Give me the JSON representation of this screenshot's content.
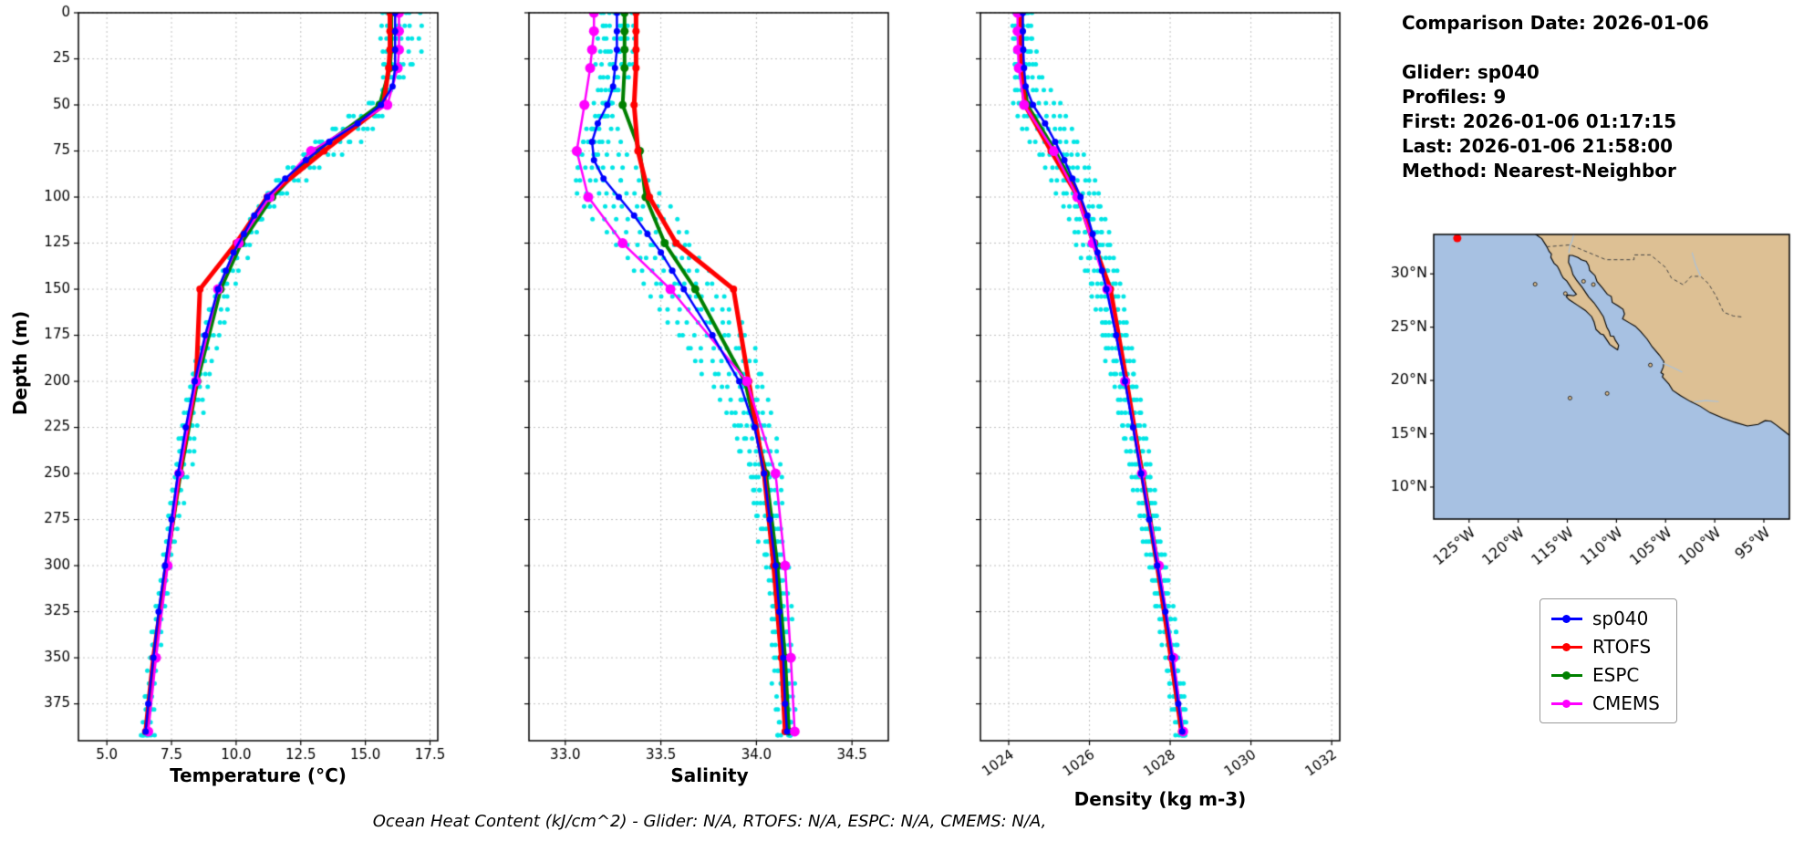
{
  "info": {
    "comparison_date": "Comparison Date: 2026-01-06",
    "glider": "Glider: sp040",
    "profiles": "Profiles: 9",
    "first": "First: 2026-01-06 01:17:15",
    "last": "Last: 2026-01-06 21:58:00",
    "method": "Method: Nearest-Neighbor"
  },
  "caption": {
    "text": "Ocean Heat Content (kJ/cm^2) - Glider: N/A,  RTOFS: N/A,  ESPC: N/A,  CMEMS: N/A,"
  },
  "legend": {
    "items": [
      {
        "label": "sp040",
        "color": "#0000ff"
      },
      {
        "label": "RTOFS",
        "color": "#ff0000"
      },
      {
        "label": "ESPC",
        "color": "#008000"
      },
      {
        "label": "CMEMS",
        "color": "#ff00ff"
      }
    ]
  },
  "chart_data": {
    "type": "line",
    "ylabel": "Depth (m)",
    "ylim": [
      0,
      395
    ],
    "depth_ticks": [
      0,
      25,
      50,
      75,
      100,
      125,
      150,
      175,
      200,
      225,
      250,
      275,
      300,
      325,
      350,
      375
    ],
    "glider_depth_levels": [
      0,
      10,
      20,
      30,
      40,
      50,
      60,
      70,
      80,
      90,
      100,
      110,
      120,
      130,
      140,
      150,
      175,
      200,
      225,
      250,
      275,
      300,
      325,
      350,
      375,
      390
    ],
    "model_depth_levels": [
      0,
      10,
      20,
      30,
      50,
      75,
      100,
      125,
      150,
      200,
      250,
      300,
      350,
      390
    ],
    "series_style": [
      {
        "name": "sp040",
        "color": "#0000ff",
        "lw": 2.5,
        "r": 3.5,
        "levels": "glider"
      },
      {
        "name": "RTOFS",
        "color": "#ff0000",
        "lw": 5.0,
        "r": 4.0,
        "levels": "model"
      },
      {
        "name": "ESPC",
        "color": "#008000",
        "lw": 4.0,
        "r": 4.5,
        "levels": "model"
      },
      {
        "name": "CMEMS",
        "color": "#ff00ff",
        "lw": 2.5,
        "r": 5.5,
        "levels": "model"
      }
    ],
    "scatter": {
      "name": "glider-raw-profiles",
      "color": "#00e5e5",
      "r": 2.5,
      "depth_offsets": [
        -16,
        -12,
        -8,
        -4,
        0,
        4,
        8,
        12,
        16
      ],
      "depth_step": 7,
      "max_depth": 392
    },
    "panels": [
      {
        "id": "temperature",
        "xlabel": "Temperature (°C)",
        "xlim": [
          3.9,
          17.8
        ],
        "xticks": [
          5.0,
          7.5,
          10.0,
          12.5,
          15.0,
          17.5
        ],
        "xtick_labels": [
          "5.0",
          "7.5",
          "10.0",
          "12.5",
          "15.0",
          "17.5"
        ],
        "rotate": 0,
        "series": {
          "sp040": [
            16.15,
            16.15,
            16.15,
            16.15,
            16.05,
            15.6,
            14.7,
            13.6,
            12.7,
            11.9,
            11.2,
            10.7,
            10.3,
            9.9,
            9.6,
            9.3,
            8.8,
            8.4,
            8.05,
            7.75,
            7.5,
            7.25,
            7.0,
            6.8,
            6.6,
            6.5
          ],
          "RTOFS": [
            15.95,
            15.95,
            15.95,
            15.9,
            15.7,
            13.4,
            11.2,
            10.0,
            8.6,
            8.45,
            7.8,
            7.3,
            6.8,
            6.5
          ],
          "ESPC": [
            16.0,
            16.0,
            16.0,
            15.95,
            15.55,
            13.1,
            11.4,
            10.2,
            9.4,
            8.5,
            7.85,
            7.3,
            6.85,
            6.55
          ],
          "CMEMS": [
            16.3,
            16.3,
            16.3,
            16.25,
            15.85,
            12.9,
            11.3,
            10.1,
            9.3,
            8.45,
            7.8,
            7.35,
            6.9,
            6.6
          ]
        },
        "scatter_value_offsets": [
          -0.5,
          -0.35,
          -0.2,
          -0.1,
          0,
          0.15,
          0.35,
          0.6,
          1.0
        ],
        "scatter_noise": 0.07
      },
      {
        "id": "salinity",
        "xlabel": "Salinity",
        "xlim": [
          32.81,
          34.69
        ],
        "xticks": [
          33.0,
          33.5,
          34.0,
          34.5
        ],
        "xtick_labels": [
          "33.0",
          "33.5",
          "34.0",
          "34.5"
        ],
        "rotate": 0,
        "series": {
          "sp040": [
            33.27,
            33.27,
            33.27,
            33.26,
            33.25,
            33.22,
            33.17,
            33.14,
            33.15,
            33.2,
            33.28,
            33.36,
            33.43,
            33.5,
            33.56,
            33.62,
            33.77,
            33.91,
            33.99,
            34.04,
            34.07,
            34.1,
            34.12,
            34.14,
            34.15,
            34.16
          ],
          "RTOFS": [
            33.37,
            33.37,
            33.37,
            33.37,
            33.36,
            33.38,
            33.44,
            33.58,
            33.88,
            33.96,
            34.04,
            34.09,
            34.13,
            34.15
          ],
          "ESPC": [
            33.31,
            33.31,
            33.31,
            33.31,
            33.3,
            33.39,
            33.42,
            33.52,
            33.68,
            33.94,
            34.05,
            34.11,
            34.15,
            34.17
          ],
          "CMEMS": [
            33.15,
            33.15,
            33.14,
            33.13,
            33.1,
            33.06,
            33.12,
            33.3,
            33.55,
            33.95,
            34.1,
            34.15,
            34.18,
            34.2
          ]
        },
        "scatter_value_offsets": [
          -0.1,
          -0.07,
          -0.045,
          -0.02,
          0,
          0.02,
          0.04,
          0.07,
          0.1
        ],
        "scatter_noise": 0.012
      },
      {
        "id": "density",
        "xlabel": "Density (kg m-3)",
        "xlim": [
          1023.3,
          1032.2
        ],
        "xticks": [
          1024,
          1026,
          1028,
          1030,
          1032
        ],
        "xtick_labels": [
          "1024",
          "1026",
          "1028",
          "1030",
          "1032"
        ],
        "rotate": 35,
        "series": {
          "sp040": [
            1024.35,
            1024.35,
            1024.36,
            1024.38,
            1024.42,
            1024.6,
            1024.9,
            1025.15,
            1025.38,
            1025.58,
            1025.78,
            1025.95,
            1026.08,
            1026.2,
            1026.31,
            1026.42,
            1026.66,
            1026.88,
            1027.08,
            1027.28,
            1027.48,
            1027.68,
            1027.88,
            1028.05,
            1028.2,
            1028.3
          ],
          "RTOFS": [
            1024.3,
            1024.3,
            1024.3,
            1024.31,
            1024.4,
            1025.05,
            1025.72,
            1026.1,
            1026.52,
            1026.92,
            1027.3,
            1027.68,
            1028.02,
            1028.28
          ],
          "ESPC": [
            1024.32,
            1024.32,
            1024.33,
            1024.34,
            1024.46,
            1025.15,
            1025.75,
            1026.12,
            1026.46,
            1026.9,
            1027.32,
            1027.7,
            1028.05,
            1028.3
          ],
          "CMEMS": [
            1024.22,
            1024.22,
            1024.23,
            1024.25,
            1024.38,
            1025.12,
            1025.7,
            1026.08,
            1026.44,
            1026.88,
            1027.3,
            1027.72,
            1028.08,
            1028.32
          ]
        },
        "scatter_value_offsets": [
          -0.22,
          -0.16,
          -0.1,
          -0.05,
          0,
          0.05,
          0.1,
          0.16,
          0.22
        ],
        "scatter_noise": 0.03
      }
    ]
  },
  "map": {
    "extent": {
      "lon_min": -128.6,
      "lon_max": -92.4,
      "lat_min": 7.0,
      "lat_max": 33.7
    },
    "lon_ticks": {
      "values": [
        -125,
        -120,
        -115,
        -110,
        -105,
        -100,
        -95
      ],
      "labels": [
        "125°W",
        "120°W",
        "115°W",
        "110°W",
        "105°W",
        "100°W",
        "95°W"
      ]
    },
    "lat_ticks": {
      "values": [
        10,
        15,
        20,
        25,
        30
      ],
      "labels": [
        "10°N",
        "15°N",
        "20°N",
        "25°N",
        "30°N"
      ]
    },
    "colors": {
      "ocean": "#a7c1e2",
      "land": "#ddc094",
      "coast": "#000000",
      "border": "#444444",
      "river": "#a9c2dc",
      "marker": "#ff0000"
    },
    "glider_marker": {
      "lon": -126.2,
      "lat": 33.35
    },
    "land": [
      [
        -118.25,
        33.72
      ],
      [
        -117.6,
        33.3
      ],
      [
        -117.12,
        32.6
      ],
      [
        -116.85,
        32.1
      ],
      [
        -116.62,
        31.86
      ],
      [
        -116.68,
        31.55
      ],
      [
        -116.35,
        31.0
      ],
      [
        -116.02,
        30.72
      ],
      [
        -115.78,
        30.3
      ],
      [
        -115.62,
        29.95
      ],
      [
        -115.42,
        29.62
      ],
      [
        -115.05,
        29.32
      ],
      [
        -114.52,
        28.58
      ],
      [
        -114.08,
        28.08
      ],
      [
        -114.35,
        27.95
      ],
      [
        -114.98,
        28.02
      ],
      [
        -115.1,
        27.85
      ],
      [
        -114.82,
        27.58
      ],
      [
        -114.0,
        27.08
      ],
      [
        -113.18,
        26.58
      ],
      [
        -112.52,
        25.98
      ],
      [
        -112.28,
        25.48
      ],
      [
        -112.08,
        24.78
      ],
      [
        -111.62,
        24.38
      ],
      [
        -111.32,
        24.28
      ],
      [
        -110.68,
        23.38
      ],
      [
        -110.0,
        22.94
      ],
      [
        -109.88,
        22.88
      ],
      [
        -109.78,
        23.3
      ],
      [
        -110.12,
        23.78
      ],
      [
        -110.28,
        24.14
      ],
      [
        -110.62,
        24.18
      ],
      [
        -110.74,
        24.58
      ],
      [
        -110.98,
        25.0
      ],
      [
        -111.33,
        25.98
      ],
      [
        -111.83,
        26.68
      ],
      [
        -112.28,
        27.28
      ],
      [
        -112.83,
        27.83
      ],
      [
        -113.48,
        28.73
      ],
      [
        -114.08,
        29.43
      ],
      [
        -114.43,
        29.93
      ],
      [
        -114.63,
        30.58
      ],
      [
        -114.88,
        31.08
      ],
      [
        -114.83,
        31.73
      ],
      [
        -114.48,
        31.73
      ],
      [
        -113.93,
        31.53
      ],
      [
        -113.58,
        31.33
      ],
      [
        -113.08,
        31.18
      ],
      [
        -112.83,
        30.78
      ],
      [
        -112.73,
        30.33
      ],
      [
        -112.18,
        29.83
      ],
      [
        -111.98,
        29.28
      ],
      [
        -111.43,
        28.68
      ],
      [
        -110.93,
        28.08
      ],
      [
        -110.53,
        27.88
      ],
      [
        -110.43,
        27.33
      ],
      [
        -109.88,
        27.03
      ],
      [
        -109.33,
        26.68
      ],
      [
        -109.18,
        26.23
      ],
      [
        -109.38,
        25.78
      ],
      [
        -108.73,
        25.43
      ],
      [
        -108.08,
        25.08
      ],
      [
        -107.53,
        24.58
      ],
      [
        -106.88,
        23.88
      ],
      [
        -106.38,
        23.18
      ],
      [
        -105.63,
        22.38
      ],
      [
        -105.18,
        21.78
      ],
      [
        -105.23,
        21.28
      ],
      [
        -105.48,
        20.73
      ],
      [
        -105.23,
        20.58
      ],
      [
        -105.33,
        20.33
      ],
      [
        -104.68,
        19.68
      ],
      [
        -104.28,
        19.08
      ],
      [
        -103.48,
        18.58
      ],
      [
        -102.48,
        18.03
      ],
      [
        -101.48,
        17.58
      ],
      [
        -100.48,
        16.98
      ],
      [
        -99.18,
        16.48
      ],
      [
        -97.98,
        16.08
      ],
      [
        -96.68,
        15.73
      ],
      [
        -95.58,
        15.88
      ],
      [
        -94.88,
        16.23
      ],
      [
        -94.28,
        16.18
      ],
      [
        -93.68,
        15.78
      ],
      [
        -92.98,
        15.28
      ],
      [
        -92.2,
        14.7
      ],
      [
        -92.2,
        33.72
      ]
    ],
    "border": [
      [
        -117.12,
        32.54
      ],
      [
        -114.72,
        32.72
      ],
      [
        -111.07,
        31.33
      ],
      [
        -108.21,
        31.33
      ],
      [
        -108.21,
        31.78
      ],
      [
        -106.53,
        31.78
      ],
      [
        -105.0,
        30.6
      ],
      [
        -104.4,
        29.6
      ],
      [
        -103.2,
        28.97
      ],
      [
        -102.4,
        29.77
      ],
      [
        -101.45,
        29.77
      ],
      [
        -100.65,
        29.1
      ],
      [
        -99.85,
        27.9
      ],
      [
        -99.1,
        26.4
      ],
      [
        -98.1,
        26.05
      ],
      [
        -97.15,
        25.95
      ]
    ],
    "rivers": [
      [
        [
          -114.35,
          33.72
        ],
        [
          -114.55,
          33.0
        ],
        [
          -114.72,
          32.72
        ],
        [
          -114.85,
          31.95
        ]
      ],
      [
        [
          -102.3,
          32.0
        ],
        [
          -101.95,
          30.85
        ],
        [
          -101.45,
          29.8
        ]
      ],
      [
        [
          -105.28,
          21.62
        ],
        [
          -104.2,
          21.18
        ],
        [
          -103.3,
          20.78
        ]
      ],
      [
        [
          -102.1,
          17.98
        ],
        [
          -100.9,
          18.12
        ],
        [
          -99.6,
          18.02
        ]
      ]
    ],
    "islands": [
      [
        -118.28,
        29.03
      ],
      [
        -115.2,
        28.15
      ],
      [
        -112.35,
        29.0
      ],
      [
        -113.35,
        29.3
      ],
      [
        -106.55,
        21.45
      ],
      [
        -110.95,
        18.78
      ],
      [
        -114.73,
        18.35
      ]
    ]
  }
}
